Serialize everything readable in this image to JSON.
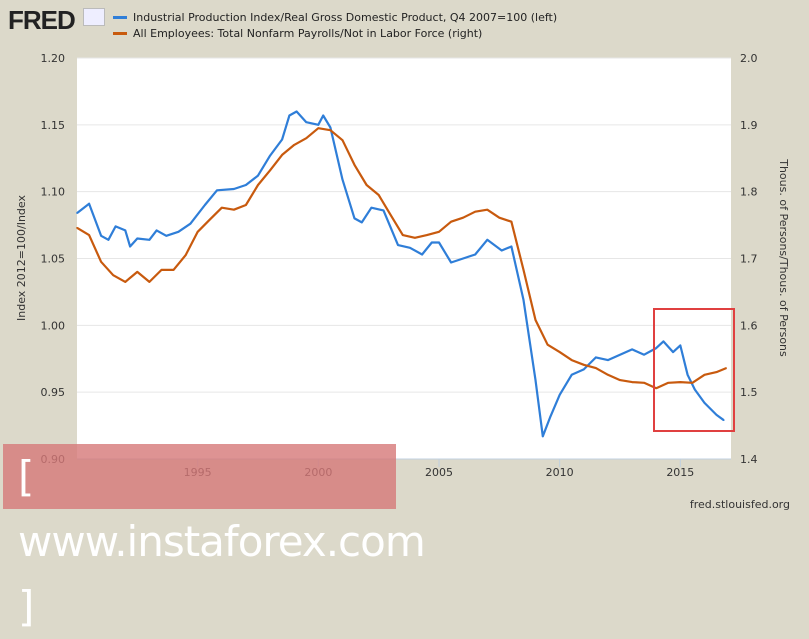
{
  "header": {
    "logo": "FRED"
  },
  "credit": "fred.stlouisfed.org",
  "watermark": "[ www.instaforex.com ]",
  "chart_data": {
    "type": "line",
    "title": "",
    "xlabel": "",
    "ylabel": "Index 2012=100/Index",
    "ylabel_right": "Thous. of Persons/Thous. of Persons",
    "xlim": [
      1990,
      2017.1
    ],
    "ylim": [
      0.9,
      1.2
    ],
    "ylim_right": [
      1.4,
      2.0
    ],
    "x_ticks": [
      "1995",
      "2000",
      "2005",
      "2010",
      "2015"
    ],
    "x_tick_values": [
      1995,
      2000,
      2005,
      2010,
      2015
    ],
    "y_ticks": [
      "0.90",
      "0.95",
      "1.00",
      "1.05",
      "1.10",
      "1.15",
      "1.20"
    ],
    "y_ticks_right": [
      "1.4",
      "1.5",
      "1.6",
      "1.7",
      "1.8",
      "1.9",
      "2.0"
    ],
    "grid": "horizontal",
    "legend_placement": "top",
    "series": [
      {
        "name": "Industrial Production Index/Real Gross Domestic Product, Q4 2007=100 (left)",
        "axis": "left",
        "color": "#2f7ed8",
        "x": [
          1990.0,
          1990.5,
          1991.0,
          1991.3,
          1991.6,
          1992.0,
          1992.2,
          1992.5,
          1993.0,
          1993.3,
          1993.7,
          1994.2,
          1994.7,
          1995.3,
          1995.8,
          1996.5,
          1997.0,
          1997.5,
          1998.0,
          1998.5,
          1998.8,
          1999.1,
          1999.5,
          2000.0,
          2000.2,
          2000.5,
          2001.0,
          2001.5,
          2001.8,
          2002.2,
          2002.7,
          2003.3,
          2003.8,
          2004.3,
          2004.7,
          2005.0,
          2005.5,
          2006.0,
          2006.5,
          2007.0,
          2007.3,
          2007.6,
          2008.0,
          2008.5,
          2009.0,
          2009.3,
          2009.6,
          2010.0,
          2010.5,
          2011.0,
          2011.5,
          2012.0,
          2012.5,
          2013.0,
          2013.5,
          2014.0,
          2014.3,
          2014.7,
          2015.0,
          2015.3,
          2015.6,
          2016.0,
          2016.5,
          2016.8
        ],
        "y": [
          1.084,
          1.091,
          1.067,
          1.064,
          1.074,
          1.071,
          1.059,
          1.065,
          1.064,
          1.071,
          1.067,
          1.07,
          1.076,
          1.09,
          1.101,
          1.102,
          1.105,
          1.112,
          1.127,
          1.139,
          1.157,
          1.16,
          1.152,
          1.15,
          1.157,
          1.148,
          1.109,
          1.08,
          1.077,
          1.088,
          1.086,
          1.06,
          1.058,
          1.053,
          1.062,
          1.062,
          1.047,
          1.05,
          1.053,
          1.064,
          1.06,
          1.056,
          1.059,
          1.019,
          0.959,
          0.917,
          0.931,
          0.948,
          0.963,
          0.967,
          0.976,
          0.974,
          0.978,
          0.982,
          0.978,
          0.983,
          0.988,
          0.98,
          0.985,
          0.963,
          0.952,
          0.942,
          0.933,
          0.929
        ]
      },
      {
        "name": "All Employees: Total Nonfarm Payrolls/Not in Labor Force (right)",
        "axis": "right",
        "color": "#c85a0e",
        "x": [
          1990.0,
          1990.5,
          1991.0,
          1991.5,
          1992.0,
          1992.5,
          1993.0,
          1993.5,
          1994.0,
          1994.5,
          1995.0,
          1995.5,
          1996.0,
          1996.5,
          1997.0,
          1997.5,
          1998.0,
          1998.5,
          1999.0,
          1999.5,
          2000.0,
          2000.5,
          2001.0,
          2001.5,
          2002.0,
          2002.5,
          2003.0,
          2003.5,
          2004.0,
          2004.5,
          2005.0,
          2005.5,
          2006.0,
          2006.5,
          2007.0,
          2007.5,
          2008.0,
          2008.5,
          2009.0,
          2009.5,
          2010.0,
          2010.5,
          2011.0,
          2011.5,
          2012.0,
          2012.5,
          2013.0,
          2013.5,
          2014.0,
          2014.5,
          2015.0,
          2015.5,
          2016.0,
          2016.5,
          2016.9
        ],
        "y": [
          1.746,
          1.735,
          1.695,
          1.675,
          1.665,
          1.68,
          1.665,
          1.683,
          1.683,
          1.705,
          1.74,
          1.758,
          1.776,
          1.773,
          1.78,
          1.81,
          1.832,
          1.855,
          1.87,
          1.88,
          1.895,
          1.892,
          1.877,
          1.84,
          1.81,
          1.795,
          1.765,
          1.735,
          1.731,
          1.735,
          1.74,
          1.755,
          1.761,
          1.77,
          1.773,
          1.761,
          1.755,
          1.683,
          1.608,
          1.571,
          1.56,
          1.548,
          1.541,
          1.536,
          1.526,
          1.518,
          1.515,
          1.514,
          1.506,
          1.514,
          1.515,
          1.514,
          1.526,
          1.53,
          1.536
        ]
      }
    ]
  }
}
